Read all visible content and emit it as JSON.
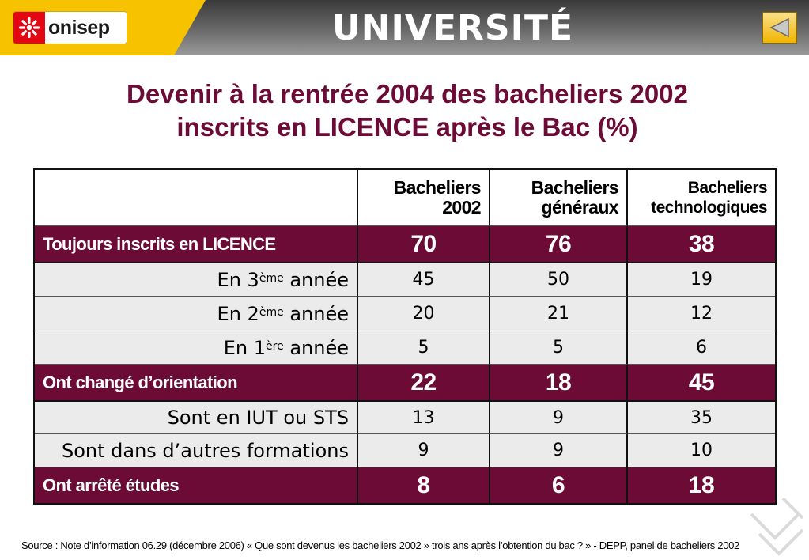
{
  "header": {
    "logo_text": "onisep",
    "title": "UNIVERSITÉ",
    "back_icon": "triangle-left-icon",
    "colors": {
      "yellow": "#f7c300",
      "logo_red": "#e30613",
      "accent": "#6b0b36"
    }
  },
  "slide": {
    "title_line1": "Devenir à la rentrée 2004 des bacheliers 2002",
    "title_line2": "inscrits en LICENCE après le Bac (%)"
  },
  "table": {
    "columns": [
      {
        "line1": "Bacheliers",
        "line2": "2002"
      },
      {
        "line1": "Bacheliers",
        "line2": "généraux"
      },
      {
        "line1": "Bacheliers",
        "line2": "technologiques"
      }
    ],
    "rows": [
      {
        "kind": "group",
        "label": "Toujours inscrits en LICENCE",
        "values": [
          "70",
          "76",
          "38"
        ]
      },
      {
        "kind": "sub",
        "label_pre": "En 3",
        "label_sup": "ème",
        "label_post": " année",
        "values": [
          "45",
          "50",
          "19"
        ]
      },
      {
        "kind": "sub",
        "label_pre": "En 2",
        "label_sup": "ème",
        "label_post": " année",
        "values": [
          "20",
          "21",
          "12"
        ]
      },
      {
        "kind": "sub",
        "label_pre": "En 1",
        "label_sup": "ère",
        "label_post": " année",
        "values": [
          "5",
          "5",
          "6"
        ]
      },
      {
        "kind": "group",
        "label": "Ont changé d’orientation",
        "values": [
          "22",
          "18",
          "45"
        ]
      },
      {
        "kind": "sub",
        "label_pre": "Sont en IUT ou STS",
        "label_sup": "",
        "label_post": "",
        "values": [
          "13",
          "9",
          "35"
        ]
      },
      {
        "kind": "sub",
        "label_pre": "Sont dans d’autres formations",
        "label_sup": "",
        "label_post": "",
        "values": [
          "9",
          "9",
          "10"
        ]
      },
      {
        "kind": "group",
        "label": "Ont arrêté études",
        "values": [
          "8",
          "6",
          "18"
        ]
      }
    ]
  },
  "footer": {
    "source": "Source : Note d’information 06.29 (décembre 2006)  « Que sont devenus les bacheliers 2002 » trois ans après l’obtention du bac ? »   -  DEPP, panel de bacheliers 2002"
  }
}
